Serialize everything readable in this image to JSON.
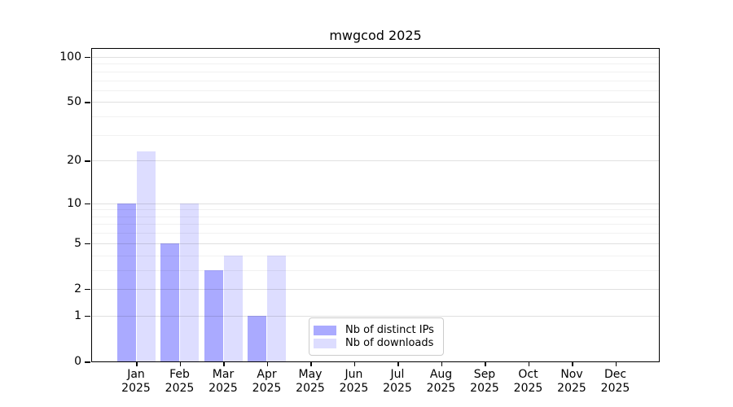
{
  "title": "mwgcod 2025",
  "chart_data": {
    "type": "bar",
    "title": "mwgcod 2025",
    "categories": [
      "Jan 2025",
      "Feb 2025",
      "Mar 2025",
      "Apr 2025",
      "May 2025",
      "Jun 2025",
      "Jul 2025",
      "Aug 2025",
      "Sep 2025",
      "Oct 2025",
      "Nov 2025",
      "Dec 2025"
    ],
    "series": [
      {
        "name": "Nb of distinct IPs",
        "color": "#aaaaff",
        "values": [
          10,
          5,
          3,
          1,
          0,
          0,
          0,
          0,
          0,
          0,
          0,
          0
        ]
      },
      {
        "name": "Nb of downloads",
        "color": "#ddddff",
        "values": [
          23,
          10,
          4,
          4,
          0,
          0,
          0,
          0,
          0,
          0,
          0,
          0
        ]
      }
    ],
    "xlabel": "",
    "ylabel": "",
    "y_scale": "log10(1+v)",
    "y_ticks": [
      0,
      1,
      2,
      5,
      10,
      20,
      50,
      100
    ],
    "y_gridlines": [
      1,
      2,
      3,
      4,
      5,
      6,
      7,
      8,
      9,
      10,
      20,
      30,
      40,
      50,
      60,
      70,
      80,
      90,
      100
    ],
    "ylim": [
      0,
      115
    ],
    "grid": true,
    "legend_position": "inside-bottom-center"
  },
  "colors": {
    "bar_distinct_ips": "#aaaaff",
    "bar_downloads": "#ddddff",
    "axis": "#000000",
    "grid_major": "rgba(0,0,0,0.12)",
    "grid_minor": "rgba(0,0,0,0.055)",
    "legend_border": "#cccccc",
    "text": "#000000",
    "background": "#ffffff"
  }
}
